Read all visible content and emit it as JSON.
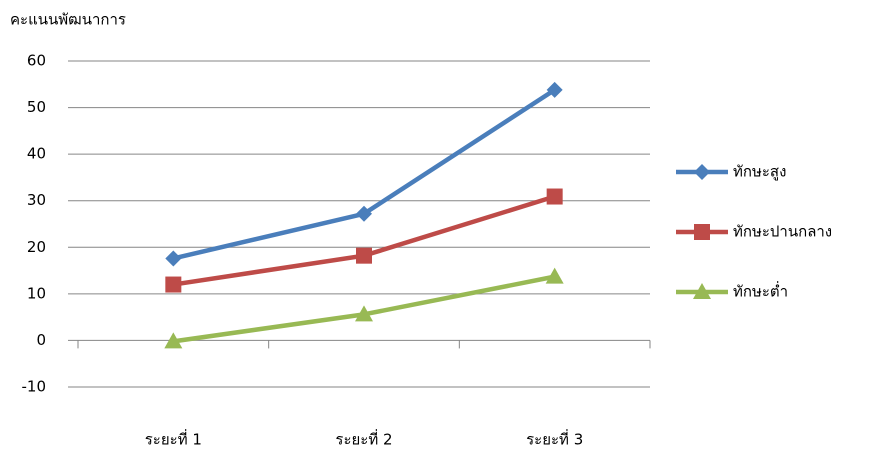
{
  "chart_data": {
    "type": "line",
    "y_label": "คะแนนพัฒนาการ",
    "categories": [
      "ระยะที่ 1",
      "ระยะที่ 2",
      "ระยะที่ 3"
    ],
    "series": [
      {
        "name": "ทักษะสูง",
        "color": "#4a7ebb",
        "marker": "diamond",
        "values": [
          17.6,
          27.2,
          53.8
        ]
      },
      {
        "name": "ทักษะปานกลาง",
        "color": "#be4b48",
        "marker": "square",
        "values": [
          12.0,
          18.2,
          30.9
        ]
      },
      {
        "name": "ทักษะต่ำ",
        "color": "#98b954",
        "marker": "triangle",
        "values": [
          -0.2,
          5.6,
          13.7
        ]
      }
    ],
    "ylim": [
      -10,
      60
    ],
    "yticks": [
      -10,
      0,
      10,
      20,
      30,
      40,
      50,
      60
    ],
    "grid": true,
    "legend": "right"
  }
}
